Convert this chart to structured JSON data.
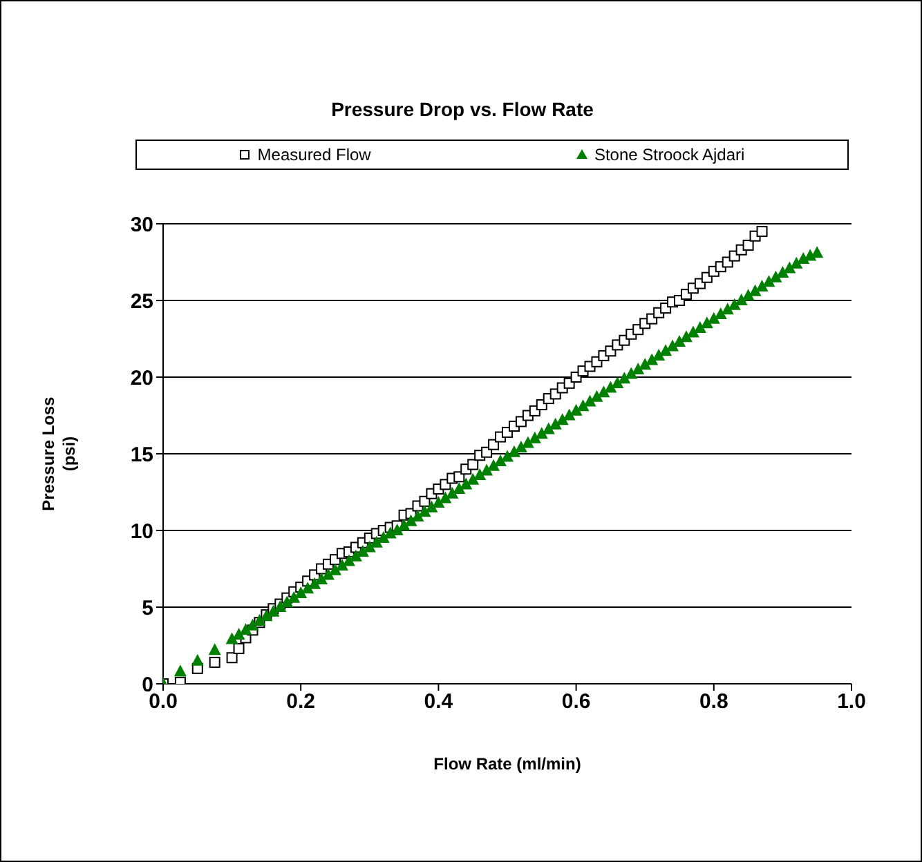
{
  "chart_data": {
    "type": "scatter",
    "title": "Pressure Drop vs. Flow Rate",
    "xlabel": "Flow Rate (ml/min)",
    "ylabel": "Pressure Loss\n(psi)",
    "xlim": [
      0,
      1
    ],
    "xticks": [
      {
        "value": 0,
        "label": "0.0"
      },
      {
        "value": 0.2,
        "label": "0.2"
      },
      {
        "value": 0.4,
        "label": "0.4"
      },
      {
        "value": 0.6,
        "label": "0.6"
      },
      {
        "value": 0.8,
        "label": "0.8"
      },
      {
        "value": 1,
        "label": "1.0"
      }
    ],
    "ylim": [
      0,
      30
    ],
    "yticks": [
      0,
      5,
      10,
      15,
      20,
      25,
      30
    ],
    "grid": "y",
    "legend": "top",
    "series": [
      {
        "name": "Measured Flow",
        "color": "#000000",
        "marker": "square",
        "x": [
          0,
          0.025,
          0.05,
          0.075,
          0.1,
          0.11,
          0.12,
          0.13,
          0.14,
          0.15,
          0.16,
          0.17,
          0.18,
          0.19,
          0.2,
          0.21,
          0.22,
          0.23,
          0.24,
          0.25,
          0.26,
          0.27,
          0.28,
          0.29,
          0.3,
          0.31,
          0.32,
          0.33,
          0.34,
          0.35,
          0.36,
          0.37,
          0.38,
          0.39,
          0.4,
          0.41,
          0.42,
          0.43,
          0.44,
          0.45,
          0.46,
          0.47,
          0.48,
          0.49,
          0.5,
          0.51,
          0.52,
          0.53,
          0.54,
          0.55,
          0.56,
          0.57,
          0.58,
          0.59,
          0.6,
          0.61,
          0.62,
          0.63,
          0.64,
          0.65,
          0.66,
          0.67,
          0.68,
          0.69,
          0.7,
          0.71,
          0.72,
          0.73,
          0.74,
          0.75,
          0.76,
          0.77,
          0.78,
          0.79,
          0.8,
          0.81,
          0.82,
          0.83,
          0.84,
          0.85,
          0.86,
          0.87
        ],
        "values": [
          0,
          0.1,
          1.0,
          1.4,
          1.7,
          2.3,
          3.0,
          3.5,
          4.0,
          4.5,
          4.9,
          5.2,
          5.6,
          6.0,
          6.3,
          6.7,
          7.1,
          7.5,
          7.8,
          8.1,
          8.5,
          8.6,
          8.9,
          9.2,
          9.5,
          9.8,
          10.0,
          10.2,
          10.3,
          11.0,
          11.1,
          11.6,
          11.9,
          12.4,
          12.7,
          13.0,
          13.4,
          13.5,
          14.0,
          14.3,
          14.9,
          15.1,
          15.6,
          16.1,
          16.4,
          16.8,
          17.1,
          17.5,
          17.8,
          18.2,
          18.6,
          18.9,
          19.3,
          19.6,
          20.0,
          20.4,
          20.7,
          21.0,
          21.4,
          21.7,
          22.1,
          22.4,
          22.8,
          23.1,
          23.5,
          23.8,
          24.2,
          24.5,
          24.9,
          25.0,
          25.4,
          25.8,
          26.1,
          26.5,
          26.9,
          27.2,
          27.5,
          27.9,
          28.3,
          28.6,
          29.2,
          29.5
        ]
      },
      {
        "name": "Stone Stroock Ajdari",
        "color": "#008000",
        "marker": "triangle",
        "x": [
          0,
          0.025,
          0.05,
          0.075,
          0.1,
          0.11,
          0.12,
          0.13,
          0.14,
          0.15,
          0.16,
          0.17,
          0.18,
          0.19,
          0.2,
          0.21,
          0.22,
          0.23,
          0.24,
          0.25,
          0.26,
          0.27,
          0.28,
          0.29,
          0.3,
          0.31,
          0.32,
          0.33,
          0.34,
          0.35,
          0.36,
          0.37,
          0.38,
          0.39,
          0.4,
          0.41,
          0.42,
          0.43,
          0.44,
          0.45,
          0.46,
          0.47,
          0.48,
          0.49,
          0.5,
          0.51,
          0.52,
          0.53,
          0.54,
          0.55,
          0.56,
          0.57,
          0.58,
          0.59,
          0.6,
          0.61,
          0.62,
          0.63,
          0.64,
          0.65,
          0.66,
          0.67,
          0.68,
          0.69,
          0.7,
          0.71,
          0.72,
          0.73,
          0.74,
          0.75,
          0.76,
          0.77,
          0.78,
          0.79,
          0.8,
          0.81,
          0.82,
          0.83,
          0.84,
          0.85,
          0.86,
          0.87,
          0.88,
          0.89,
          0.9,
          0.91,
          0.92,
          0.93,
          0.94,
          0.95
        ],
        "values": [
          0,
          0.8,
          1.5,
          2.2,
          2.9,
          3.2,
          3.5,
          3.8,
          4.1,
          4.4,
          4.7,
          5.0,
          5.3,
          5.6,
          5.9,
          6.2,
          6.5,
          6.8,
          7.1,
          7.4,
          7.7,
          8.0,
          8.3,
          8.6,
          8.9,
          9.2,
          9.5,
          9.8,
          10.0,
          10.3,
          10.6,
          10.9,
          11.2,
          11.5,
          11.8,
          12.1,
          12.4,
          12.7,
          13.0,
          13.3,
          13.6,
          13.9,
          14.2,
          14.5,
          14.8,
          15.1,
          15.4,
          15.7,
          16.0,
          16.3,
          16.6,
          16.9,
          17.2,
          17.5,
          17.8,
          18.1,
          18.4,
          18.7,
          19.0,
          19.3,
          19.6,
          19.9,
          20.2,
          20.5,
          20.8,
          21.1,
          21.4,
          21.7,
          22.0,
          22.3,
          22.6,
          22.9,
          23.2,
          23.5,
          23.8,
          24.1,
          24.4,
          24.7,
          25.0,
          25.3,
          25.6,
          25.9,
          26.2,
          26.5,
          26.8,
          27.1,
          27.4,
          27.7,
          27.9,
          28.1
        ]
      }
    ]
  }
}
